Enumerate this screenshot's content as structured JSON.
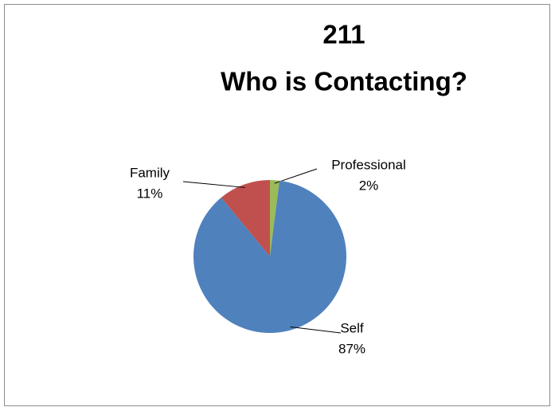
{
  "chart_data": {
    "type": "pie",
    "title": [
      "211",
      "Who is Contacting?"
    ],
    "categories": [
      "Professional",
      "Self",
      "Family"
    ],
    "values": [
      2,
      87,
      11
    ],
    "value_labels": [
      "2%",
      "87%",
      "11%"
    ],
    "colors": [
      "#9bbb59",
      "#4f81bd",
      "#c0504d"
    ]
  }
}
